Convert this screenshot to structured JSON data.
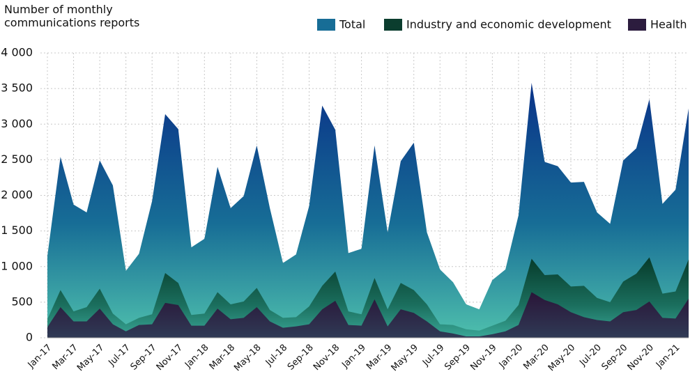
{
  "chart_data": {
    "type": "area",
    "y_label": "Number of monthly communications reports",
    "categories": [
      "Jan-17",
      null,
      "Mar-17",
      null,
      "May-17",
      null,
      "Jul-17",
      null,
      "Sep-17",
      null,
      "Nov-17",
      null,
      "Jan-18",
      null,
      "Mar-18",
      null,
      "May-18",
      null,
      "Jul-18",
      null,
      "Sep-18",
      null,
      "Nov-18",
      null,
      "Jan-19",
      null,
      "Mar-19",
      null,
      "May-19",
      null,
      "Jul-19",
      null,
      "Sep-19",
      null,
      "Nov-19",
      null,
      "Jan-20",
      null,
      "Mar-20",
      null,
      "May-20",
      null,
      "Jul-20",
      null,
      "Sep-20",
      null,
      "Nov-20",
      null,
      "Jan-21",
      null
    ],
    "series": [
      {
        "name": "Total",
        "color": "#176d96",
        "values": [
          1150,
          2540,
          1870,
          1760,
          2490,
          2140,
          940,
          1180,
          1920,
          3140,
          2930,
          1270,
          1390,
          2400,
          1820,
          1990,
          2700,
          1820,
          1050,
          1170,
          1850,
          3260,
          2920,
          1190,
          1250,
          2700,
          1480,
          2480,
          2740,
          1480,
          960,
          780,
          470,
          400,
          810,
          960,
          1720,
          3580,
          2470,
          2410,
          2180,
          2190,
          1760,
          1600,
          2490,
          2660,
          3350,
          1880,
          2080,
          3220
        ]
      },
      {
        "name": "Industry and economic development",
        "color": "#0b3d2e",
        "values": [
          260,
          670,
          370,
          430,
          690,
          340,
          190,
          280,
          330,
          910,
          770,
          320,
          340,
          640,
          470,
          510,
          700,
          390,
          280,
          290,
          440,
          730,
          930,
          370,
          330,
          840,
          400,
          770,
          670,
          470,
          190,
          180,
          120,
          100,
          170,
          240,
          460,
          1110,
          880,
          890,
          720,
          730,
          560,
          500,
          790,
          900,
          1130,
          620,
          650,
          1100
        ]
      },
      {
        "name": "Health",
        "color": "#2c1c3e",
        "values": [
          150,
          430,
          230,
          230,
          410,
          190,
          90,
          180,
          190,
          490,
          460,
          170,
          170,
          410,
          260,
          280,
          430,
          230,
          140,
          160,
          190,
          400,
          520,
          180,
          170,
          540,
          160,
          400,
          350,
          230,
          90,
          60,
          20,
          20,
          50,
          90,
          180,
          640,
          530,
          470,
          360,
          290,
          250,
          230,
          360,
          390,
          510,
          280,
          270,
          550
        ]
      }
    ],
    "ylim": [
      0,
      4000
    ],
    "yticks": [
      0,
      500,
      {
        "value": 1000,
        "label": "1 000"
      },
      {
        "value": 1500,
        "label": "1 500"
      },
      {
        "value": 2000,
        "label": "2 000"
      },
      {
        "value": 2500,
        "label": "2 500"
      },
      {
        "value": 3000,
        "label": "3 000"
      },
      {
        "value": 3500,
        "label": "3 500"
      },
      {
        "value": 4000,
        "label": "4 000"
      }
    ],
    "grid": true
  }
}
